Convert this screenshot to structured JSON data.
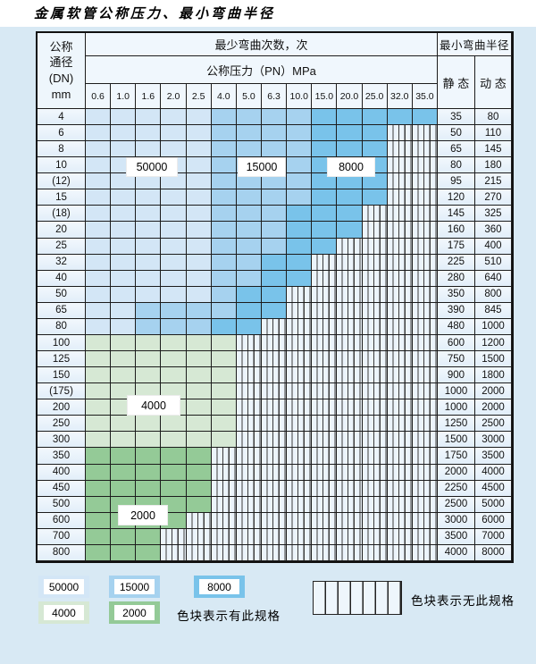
{
  "title": "金属软管公称压力、最小弯曲半径",
  "header": {
    "dn_lines": [
      "公称",
      "通径",
      "(DN)",
      "mm"
    ],
    "cycles_label": "最少弯曲次数，次",
    "pressure_label": "公称压力（PN）MPa",
    "pressures": [
      "0.6",
      "1.0",
      "1.6",
      "2.0",
      "2.5",
      "4.0",
      "5.0",
      "6.3",
      "10.0",
      "15.0",
      "20.0",
      "25.0",
      "32.0",
      "35.0"
    ],
    "radius_label": "最小弯曲半径",
    "static_label": "静 态",
    "dynamic_label": "动 态"
  },
  "labels": {
    "v50000": "50000",
    "v15000": "15000",
    "v8000": "8000",
    "v4000": "4000",
    "v2000": "2000"
  },
  "legend": {
    "has_spec": "色块表示有此规格",
    "no_spec": "色块表示无此规格"
  },
  "colors": {
    "c50": "#d3e6f6",
    "c15": "#a6d2ef",
    "c8": "#79c3ea",
    "g4": "#d6e8d4",
    "g2": "#94ca97",
    "hatch_bg": "#ecf4fb",
    "grid_line": "#1c1c1c",
    "page_bg": "#d8e9f4"
  },
  "table": {
    "zone_meaning": {
      "c50": "50000次",
      "c15": "15000次",
      "c8": "8000次",
      "g4": "4000次",
      "g2": "2000次",
      "x": "无此规格"
    },
    "rows": [
      {
        "dn": "4",
        "static": "35",
        "dynamic": "80",
        "zones": [
          [
            "c50",
            5
          ],
          [
            "c15",
            4
          ],
          [
            "c8",
            5
          ]
        ]
      },
      {
        "dn": "6",
        "static": "50",
        "dynamic": "110",
        "zones": [
          [
            "c50",
            5
          ],
          [
            "c15",
            4
          ],
          [
            "c8",
            3
          ],
          [
            "x",
            2
          ]
        ]
      },
      {
        "dn": "8",
        "static": "65",
        "dynamic": "145",
        "zones": [
          [
            "c50",
            5
          ],
          [
            "c15",
            4
          ],
          [
            "c8",
            3
          ],
          [
            "x",
            2
          ]
        ]
      },
      {
        "dn": "10",
        "static": "80",
        "dynamic": "180",
        "zones": [
          [
            "c50",
            5
          ],
          [
            "c15",
            4
          ],
          [
            "c8",
            3
          ],
          [
            "x",
            2
          ]
        ]
      },
      {
        "dn": "(12)",
        "static": "95",
        "dynamic": "215",
        "zones": [
          [
            "c50",
            5
          ],
          [
            "c15",
            4
          ],
          [
            "c8",
            3
          ],
          [
            "x",
            2
          ]
        ]
      },
      {
        "dn": "15",
        "static": "120",
        "dynamic": "270",
        "zones": [
          [
            "c50",
            5
          ],
          [
            "c15",
            4
          ],
          [
            "c8",
            3
          ],
          [
            "x",
            2
          ]
        ]
      },
      {
        "dn": "(18)",
        "static": "145",
        "dynamic": "325",
        "zones": [
          [
            "c50",
            5
          ],
          [
            "c15",
            3
          ],
          [
            "c8",
            3
          ],
          [
            "x",
            3
          ]
        ]
      },
      {
        "dn": "20",
        "static": "160",
        "dynamic": "360",
        "zones": [
          [
            "c50",
            5
          ],
          [
            "c15",
            3
          ],
          [
            "c8",
            3
          ],
          [
            "x",
            3
          ]
        ]
      },
      {
        "dn": "25",
        "static": "175",
        "dynamic": "400",
        "zones": [
          [
            "c50",
            5
          ],
          [
            "c15",
            3
          ],
          [
            "c8",
            2
          ],
          [
            "x",
            4
          ]
        ]
      },
      {
        "dn": "32",
        "static": "225",
        "dynamic": "510",
        "zones": [
          [
            "c50",
            5
          ],
          [
            "c15",
            2
          ],
          [
            "c8",
            2
          ],
          [
            "x",
            5
          ]
        ]
      },
      {
        "dn": "40",
        "static": "280",
        "dynamic": "640",
        "zones": [
          [
            "c50",
            5
          ],
          [
            "c15",
            2
          ],
          [
            "c8",
            2
          ],
          [
            "x",
            5
          ]
        ]
      },
      {
        "dn": "50",
        "static": "350",
        "dynamic": "800",
        "zones": [
          [
            "c50",
            5
          ],
          [
            "c15",
            1
          ],
          [
            "c8",
            2
          ],
          [
            "x",
            6
          ]
        ]
      },
      {
        "dn": "65",
        "static": "390",
        "dynamic": "845",
        "zones": [
          [
            "c50",
            2
          ],
          [
            "c15",
            4
          ],
          [
            "c8",
            2
          ],
          [
            "x",
            6
          ]
        ]
      },
      {
        "dn": "80",
        "static": "480",
        "dynamic": "1000",
        "zones": [
          [
            "c50",
            2
          ],
          [
            "c15",
            3
          ],
          [
            "c8",
            2
          ],
          [
            "x",
            7
          ]
        ]
      },
      {
        "dn": "100",
        "static": "600",
        "dynamic": "1200",
        "zones": [
          [
            "g4",
            6
          ],
          [
            "x",
            8
          ]
        ]
      },
      {
        "dn": "125",
        "static": "750",
        "dynamic": "1500",
        "zones": [
          [
            "g4",
            6
          ],
          [
            "x",
            8
          ]
        ]
      },
      {
        "dn": "150",
        "static": "900",
        "dynamic": "1800",
        "zones": [
          [
            "g4",
            6
          ],
          [
            "x",
            8
          ]
        ]
      },
      {
        "dn": "(175)",
        "static": "1000",
        "dynamic": "2000",
        "zones": [
          [
            "g4",
            6
          ],
          [
            "x",
            8
          ]
        ]
      },
      {
        "dn": "200",
        "static": "1000",
        "dynamic": "2000",
        "zones": [
          [
            "g4",
            6
          ],
          [
            "x",
            8
          ]
        ]
      },
      {
        "dn": "250",
        "static": "1250",
        "dynamic": "2500",
        "zones": [
          [
            "g4",
            6
          ],
          [
            "x",
            8
          ]
        ]
      },
      {
        "dn": "300",
        "static": "1500",
        "dynamic": "3000",
        "zones": [
          [
            "g4",
            6
          ],
          [
            "x",
            8
          ]
        ]
      },
      {
        "dn": "350",
        "static": "1750",
        "dynamic": "3500",
        "zones": [
          [
            "g2",
            5
          ],
          [
            "x",
            9
          ]
        ]
      },
      {
        "dn": "400",
        "static": "2000",
        "dynamic": "4000",
        "zones": [
          [
            "g2",
            5
          ],
          [
            "x",
            9
          ]
        ]
      },
      {
        "dn": "450",
        "static": "2250",
        "dynamic": "4500",
        "zones": [
          [
            "g2",
            5
          ],
          [
            "x",
            9
          ]
        ]
      },
      {
        "dn": "500",
        "static": "2500",
        "dynamic": "5000",
        "zones": [
          [
            "g2",
            5
          ],
          [
            "x",
            9
          ]
        ]
      },
      {
        "dn": "600",
        "static": "3000",
        "dynamic": "6000",
        "zones": [
          [
            "g2",
            4
          ],
          [
            "x",
            10
          ]
        ]
      },
      {
        "dn": "700",
        "static": "3500",
        "dynamic": "7000",
        "zones": [
          [
            "g2",
            3
          ],
          [
            "x",
            11
          ]
        ]
      },
      {
        "dn": "800",
        "static": "4000",
        "dynamic": "8000",
        "zones": [
          [
            "g2",
            3
          ],
          [
            "x",
            11
          ]
        ]
      }
    ]
  }
}
